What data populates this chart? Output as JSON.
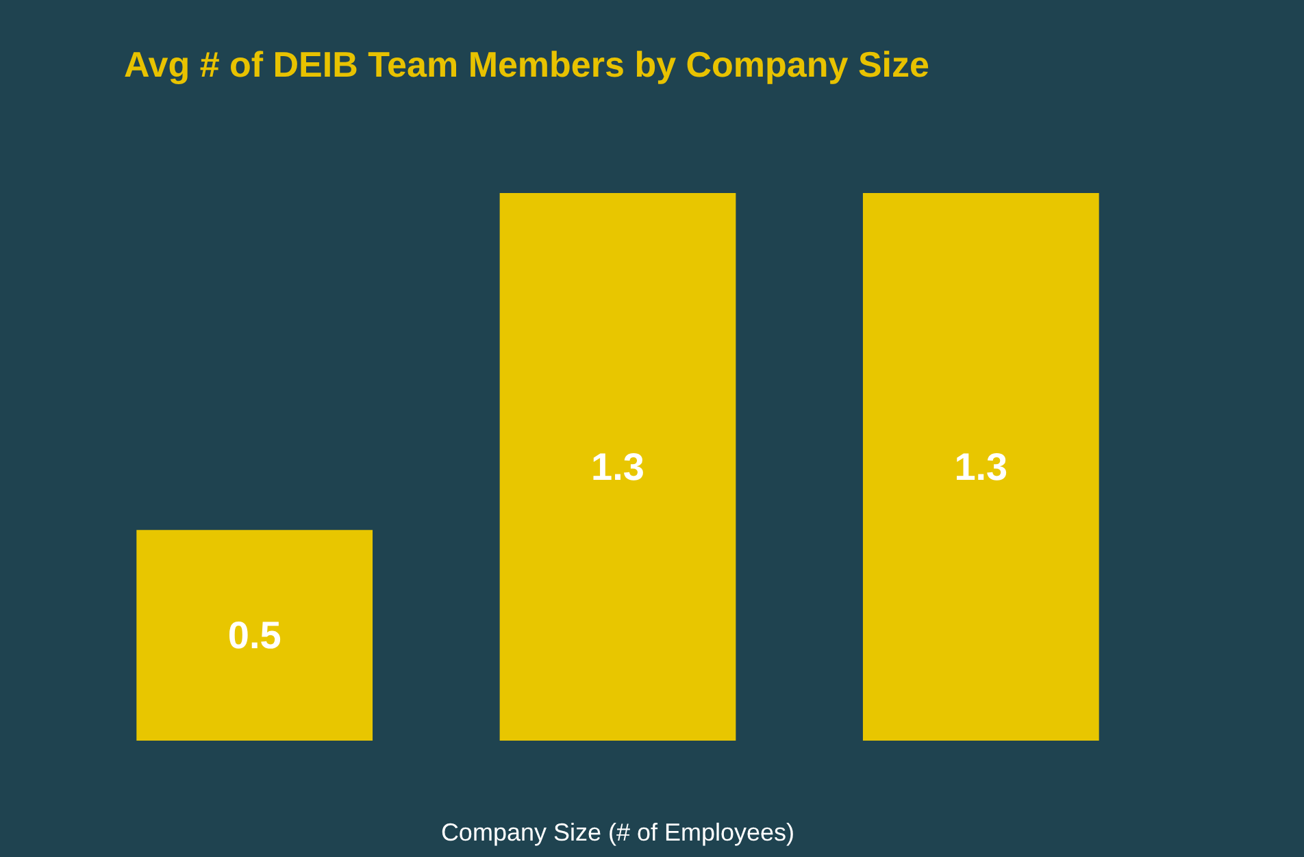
{
  "chart_data": {
    "type": "bar",
    "title": "Avg # of DEIB Team Members by Company Size",
    "xlabel": "Company Size (# of Employees)",
    "categories": [
      null,
      null,
      null
    ],
    "series": [
      {
        "color": "#e8c600",
        "values": [
          0.5,
          1.3,
          1.3
        ]
      }
    ],
    "data_labels": true,
    "tick_labels": false
  }
}
